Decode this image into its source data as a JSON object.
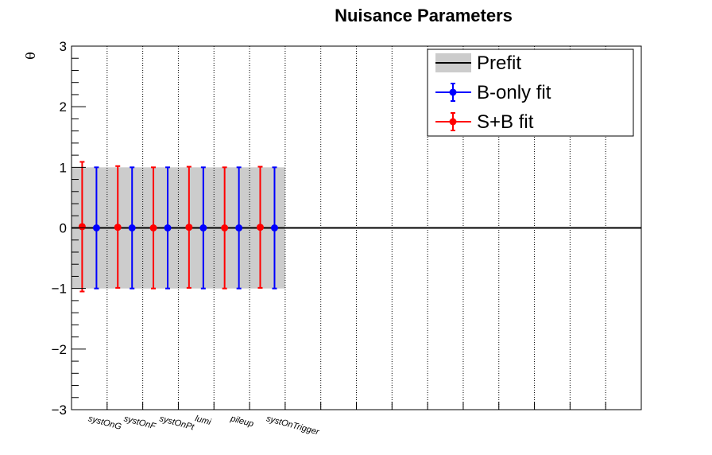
{
  "chart_data": {
    "type": "scatter",
    "title": "Nuisance Parameters",
    "ylabel": "θ",
    "xlabel": "",
    "ylim": [
      -3,
      3
    ],
    "y_ticks": [
      -3,
      -2,
      -1,
      0,
      1,
      2,
      3
    ],
    "y_tick_labels": [
      "−3",
      "−2",
      "−1",
      "0",
      "1",
      "2",
      "3"
    ],
    "n_bins": 16,
    "categories": [
      "systOnG",
      "systOnF",
      "systOnPt",
      "lumi",
      "pileup",
      "systOnTrigger"
    ],
    "prefit": {
      "name": "Prefit",
      "band_low": -1,
      "band_high": 1,
      "central": 0,
      "band_color": "#cccccc",
      "line_color": "#000000"
    },
    "series": [
      {
        "name": "B-only fit",
        "color": "#0000ff",
        "values": [
          0,
          0,
          0,
          0,
          0,
          0
        ],
        "err_low": [
          1.0,
          1.0,
          1.0,
          1.0,
          1.0,
          1.0
        ],
        "err_high": [
          1.0,
          1.0,
          1.0,
          1.0,
          1.0,
          1.0
        ]
      },
      {
        "name": "S+B fit",
        "color": "#ff0000",
        "values": [
          0.02,
          0.01,
          0.0,
          0.01,
          0.0,
          0.01
        ],
        "err_low": [
          1.07,
          1.0,
          1.0,
          1.0,
          1.0,
          1.0
        ],
        "err_high": [
          1.07,
          1.01,
          1.0,
          1.0,
          1.0,
          1.0
        ]
      }
    ],
    "grid_x": true,
    "grid_y": false,
    "legend_position": "top-right"
  }
}
